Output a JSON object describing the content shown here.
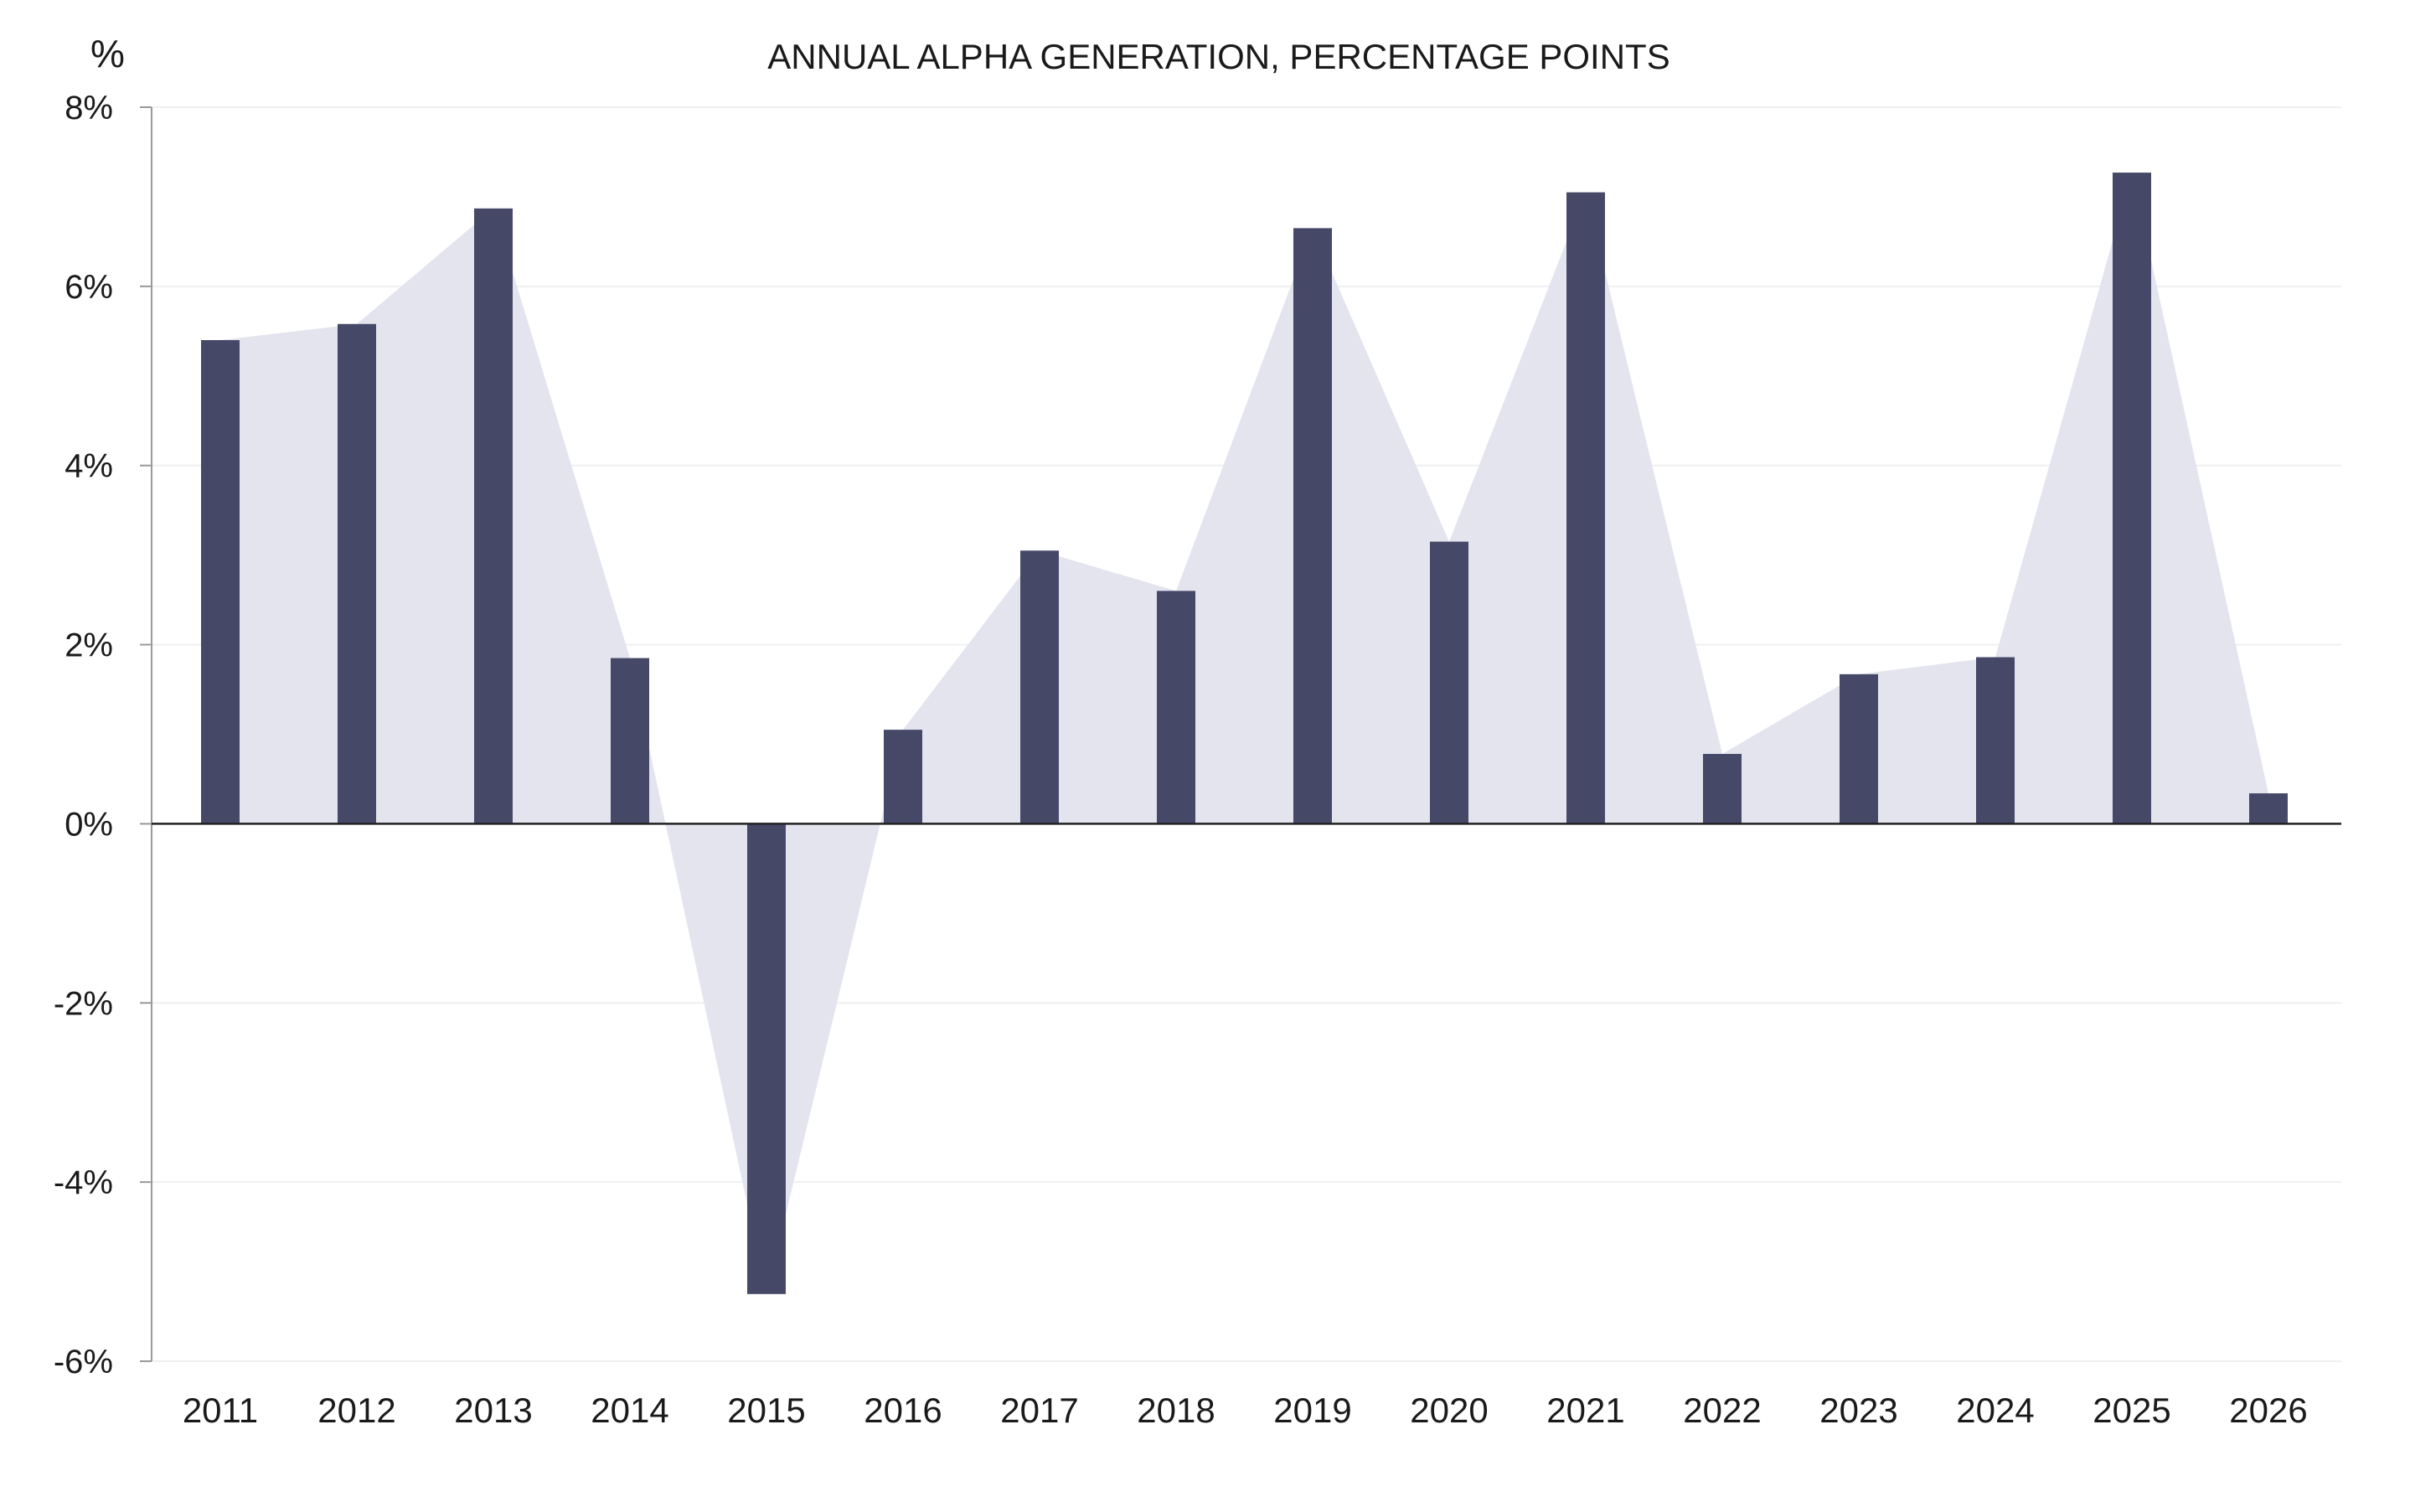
{
  "chart_data": {
    "type": "bar",
    "title": "ANNUAL ALPHA GENERATION, PERCENTAGE POINTS",
    "ylabel": "%",
    "xlabel": "",
    "ylim": [
      -6,
      8
    ],
    "yticks": [
      8,
      6,
      4,
      2,
      0,
      -2,
      -4,
      -6
    ],
    "ytick_labels": [
      "8%",
      "6%",
      "4%",
      "2%",
      "0%",
      "-2%",
      "-4%",
      "-6%"
    ],
    "categories": [
      "2011",
      "2012",
      "2013",
      "2014",
      "2015",
      "2016",
      "2017",
      "2018",
      "2019",
      "2020",
      "2021",
      "2022",
      "2023",
      "2024",
      "2025",
      "2026"
    ],
    "values": [
      5.4,
      5.58,
      6.87,
      1.85,
      -5.25,
      1.05,
      3.05,
      2.6,
      6.65,
      3.15,
      7.05,
      0.78,
      1.67,
      1.86,
      7.27,
      0.34
    ],
    "grid": true,
    "colors": {
      "bar": "#464868",
      "area": "#e4e4ef",
      "axis": "#999999",
      "zero": "#222222",
      "grid": "#f0f0f3"
    }
  }
}
